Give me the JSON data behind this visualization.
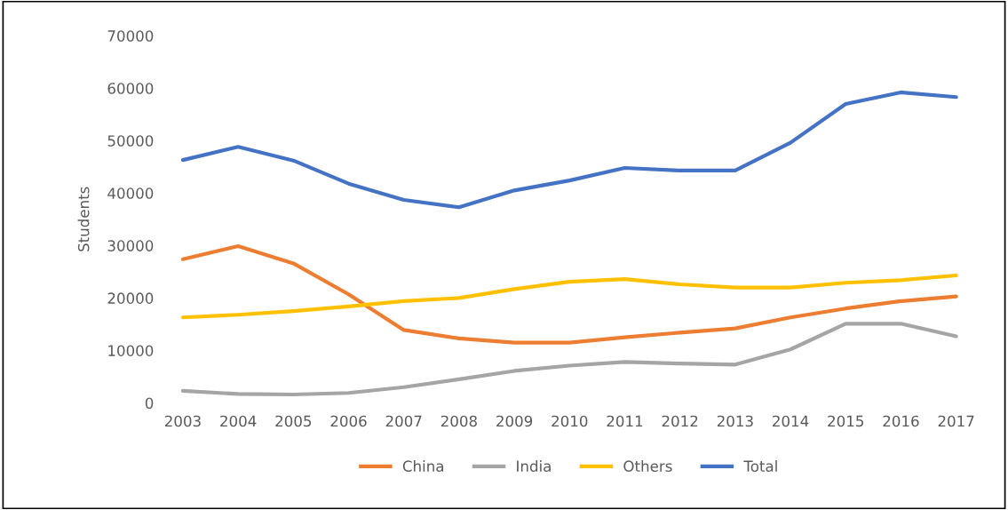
{
  "chart_data": {
    "type": "line",
    "ylabel": "Students",
    "categories": [
      "2003",
      "2004",
      "2005",
      "2006",
      "2007",
      "2008",
      "2009",
      "2010",
      "2011",
      "2012",
      "2013",
      "2014",
      "2015",
      "2016",
      "2017"
    ],
    "ylim": [
      0,
      70000
    ],
    "yticks": [
      0,
      10000,
      20000,
      30000,
      40000,
      50000,
      60000,
      70000
    ],
    "grid": false,
    "legend": "bottom",
    "line_style": "solid",
    "marker": "none",
    "series": [
      {
        "name": "China",
        "color": "#ed7d31",
        "values": [
          27400,
          29900,
          26600,
          20700,
          13900,
          12300,
          11500,
          11500,
          12500,
          13400,
          14200,
          16300,
          18000,
          19400,
          20300
        ]
      },
      {
        "name": "India",
        "color": "#a5a5a5",
        "values": [
          2300,
          1700,
          1600,
          1900,
          3000,
          4500,
          6100,
          7100,
          7800,
          7500,
          7300,
          10200,
          15100,
          15100,
          12700
        ]
      },
      {
        "name": "Others",
        "color": "#ffc000",
        "values": [
          16300,
          16800,
          17500,
          18400,
          19400,
          20000,
          21700,
          23100,
          23600,
          22600,
          22000,
          22000,
          22900,
          23400,
          24300
        ]
      },
      {
        "name": "Total",
        "color": "#4472c4",
        "values": [
          46300,
          48800,
          46200,
          41800,
          38700,
          37300,
          40500,
          42400,
          44800,
          44300,
          44300,
          49600,
          57000,
          59200,
          58300
        ]
      }
    ]
  }
}
